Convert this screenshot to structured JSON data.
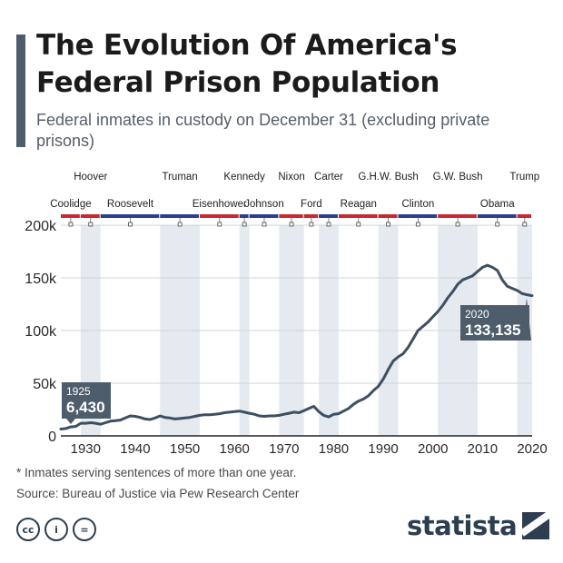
{
  "header": {
    "title": "The Evolution Of America's Federal Prison Population",
    "subtitle": "Federal inmates in custody on December 31 (excluding private prisons)",
    "accent_color": "#4d5d6c"
  },
  "colors": {
    "line": "#3d4f60",
    "republican": "#c8282e",
    "democrat": "#2a3f8f",
    "shade": "#e5e9f0",
    "callout_bg": "#4d5d6c"
  },
  "chart_data": {
    "type": "line",
    "title": "The Evolution Of America's Federal Prison Population",
    "subtitle": "Federal inmates in custody on December 31 (excluding private prisons)",
    "xlabel": "",
    "ylabel": "",
    "xlim": [
      1925,
      2020
    ],
    "ylim": [
      0,
      200000
    ],
    "grid": true,
    "x_ticks": [
      "1930",
      "1940",
      "1950",
      "1960",
      "1970",
      "1980",
      "1990",
      "2000",
      "2010",
      "2020"
    ],
    "y_ticks": [
      "0",
      "50k",
      "100k",
      "150k",
      "200k"
    ],
    "series": [
      {
        "x": [
          1925,
          1926,
          1927,
          1928,
          1929,
          1930,
          1931,
          1932,
          1933,
          1934,
          1935,
          1936,
          1937,
          1938,
          1939,
          1940,
          1941,
          1942,
          1943,
          1944,
          1945,
          1946,
          1947,
          1948,
          1949,
          1950,
          1951,
          1952,
          1953,
          1954,
          1955,
          1956,
          1957,
          1958,
          1959,
          1960,
          1961,
          1962,
          1963,
          1964,
          1965,
          1966,
          1967,
          1968,
          1969,
          1970,
          1971,
          1972,
          1973,
          1974,
          1975,
          1976,
          1977,
          1978,
          1979,
          1980,
          1981,
          1982,
          1983,
          1984,
          1985,
          1986,
          1987,
          1988,
          1989,
          1990,
          1991,
          1992,
          1993,
          1994,
          1995,
          1996,
          1997,
          1998,
          1999,
          2000,
          2001,
          2002,
          2003,
          2004,
          2005,
          2006,
          2007,
          2008,
          2009,
          2010,
          2011,
          2012,
          2013,
          2014,
          2015,
          2016,
          2017,
          2018,
          2019,
          2020
        ],
        "values": [
          6430,
          7000,
          8500,
          9000,
          12000,
          12000,
          12500,
          12000,
          11000,
          12500,
          14000,
          14500,
          15000,
          17000,
          19000,
          18500,
          17500,
          16000,
          15500,
          17000,
          19000,
          17500,
          17000,
          16000,
          16500,
          17000,
          17500,
          18500,
          19500,
          20000,
          20000,
          20500,
          21000,
          22000,
          22500,
          23000,
          23500,
          22500,
          21500,
          20500,
          19000,
          18500,
          19000,
          19000,
          19500,
          20500,
          21500,
          22500,
          22000,
          24000,
          26000,
          28000,
          23000,
          19500,
          18000,
          20500,
          21000,
          23500,
          26000,
          30000,
          33000,
          35000,
          38000,
          43000,
          47000,
          54000,
          63000,
          71000,
          75000,
          78000,
          84000,
          92000,
          100000,
          104000,
          108000,
          113000,
          118000,
          124000,
          131000,
          137000,
          144000,
          148000,
          150000,
          152000,
          156000,
          160000,
          162000,
          160000,
          157000,
          148000,
          142000,
          140000,
          138000,
          135000,
          134000,
          133135
        ]
      }
    ],
    "annotations": [
      {
        "year": "1925",
        "value": "6,430"
      },
      {
        "year": "2020",
        "value": "133,135"
      }
    ],
    "presidents": [
      {
        "name": "Coolidge",
        "start": 1925,
        "end": 1929,
        "party": "R",
        "row": 2
      },
      {
        "name": "Hoover",
        "start": 1929,
        "end": 1933,
        "party": "R",
        "row": 1
      },
      {
        "name": "Roosevelt",
        "start": 1933,
        "end": 1945,
        "party": "D",
        "row": 2
      },
      {
        "name": "Truman",
        "start": 1945,
        "end": 1953,
        "party": "D",
        "row": 1
      },
      {
        "name": "Eisenhower",
        "start": 1953,
        "end": 1961,
        "party": "R",
        "row": 2
      },
      {
        "name": "Kennedy",
        "start": 1961,
        "end": 1963,
        "party": "D",
        "row": 1
      },
      {
        "name": "Johnson",
        "start": 1963,
        "end": 1969,
        "party": "D",
        "row": 2
      },
      {
        "name": "Nixon",
        "start": 1969,
        "end": 1974,
        "party": "R",
        "row": 1
      },
      {
        "name": "Ford",
        "start": 1974,
        "end": 1977,
        "party": "R",
        "row": 2
      },
      {
        "name": "Carter",
        "start": 1977,
        "end": 1981,
        "party": "D",
        "row": 1
      },
      {
        "name": "Reagan",
        "start": 1981,
        "end": 1989,
        "party": "R",
        "row": 2
      },
      {
        "name": "G.H.W. Bush",
        "start": 1989,
        "end": 1993,
        "party": "R",
        "row": 1
      },
      {
        "name": "Clinton",
        "start": 1993,
        "end": 2001,
        "party": "D",
        "row": 2
      },
      {
        "name": "G.W. Bush",
        "start": 2001,
        "end": 2009,
        "party": "R",
        "row": 1
      },
      {
        "name": "Obama",
        "start": 2009,
        "end": 2017,
        "party": "D",
        "row": 2
      },
      {
        "name": "Trump",
        "start": 2017,
        "end": 2020,
        "party": "R",
        "row": 1
      }
    ]
  },
  "footer": {
    "footnote": "* Inmates serving sentences of more than one year.",
    "source": "Source: Bureau of Justice via Pew Research Center",
    "license_icons": [
      "cc-icon",
      "person-icon",
      "equals-icon"
    ],
    "license_glyphs": [
      "cc",
      "i",
      "="
    ],
    "brand": "statista"
  }
}
